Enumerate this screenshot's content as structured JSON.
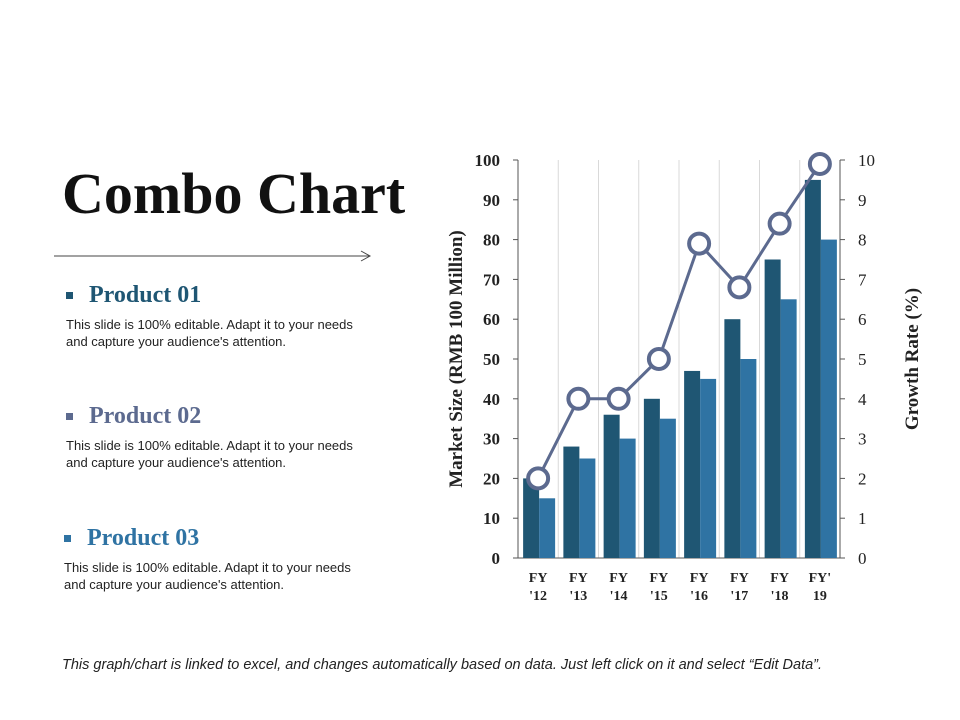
{
  "slide": {
    "title": "Combo Chart",
    "footer": "This graph/chart is linked to excel, and changes automatically based on data. Just left click on it and select “Edit Data”.",
    "products": [
      {
        "name": "Product 01",
        "color": "#1f5673",
        "desc": "This slide is 100% editable. Adapt it to your needs and capture your audience's attention."
      },
      {
        "name": "Product 02",
        "color": "#5c6a8f",
        "desc": "This slide is 100% editable. Adapt it to your needs and capture your audience's attention."
      },
      {
        "name": "Product 03",
        "color": "#2f73a3",
        "desc": "This slide is 100% editable. Adapt it to your needs and capture your audience's attention."
      }
    ]
  },
  "chart_data": {
    "type": "bar",
    "categories": [
      [
        "FY",
        "'12"
      ],
      [
        "FY",
        "'13"
      ],
      [
        "FY",
        "'14"
      ],
      [
        "FY",
        "'15"
      ],
      [
        "FY",
        "'16"
      ],
      [
        "FY",
        "'17"
      ],
      [
        "FY",
        "'18"
      ],
      [
        "FY'",
        "19"
      ]
    ],
    "series": [
      {
        "type": "bar",
        "axis": "left",
        "color": "#1f5673",
        "values": [
          20,
          28,
          36,
          40,
          47,
          60,
          75,
          95
        ]
      },
      {
        "type": "bar",
        "axis": "left",
        "color": "#2f73a3",
        "values": [
          15,
          25,
          30,
          35,
          45,
          50,
          65,
          80
        ]
      },
      {
        "type": "line",
        "axis": "right",
        "color": "#5c6a8f",
        "values": [
          2,
          4,
          4,
          5,
          7.9,
          6.8,
          8.4,
          9.9
        ]
      }
    ],
    "ylabel": "Market Size (RMB 100 Million)",
    "y2label": "Growth Rate (%)",
    "ylim": [
      0,
      100
    ],
    "y2lim": [
      0,
      10
    ],
    "yticks": [
      0,
      10,
      20,
      30,
      40,
      50,
      60,
      70,
      80,
      90,
      100
    ],
    "y2ticks": [
      0,
      1,
      2,
      3,
      4,
      5,
      6,
      7,
      8,
      9,
      10
    ],
    "grid": "vertical"
  }
}
